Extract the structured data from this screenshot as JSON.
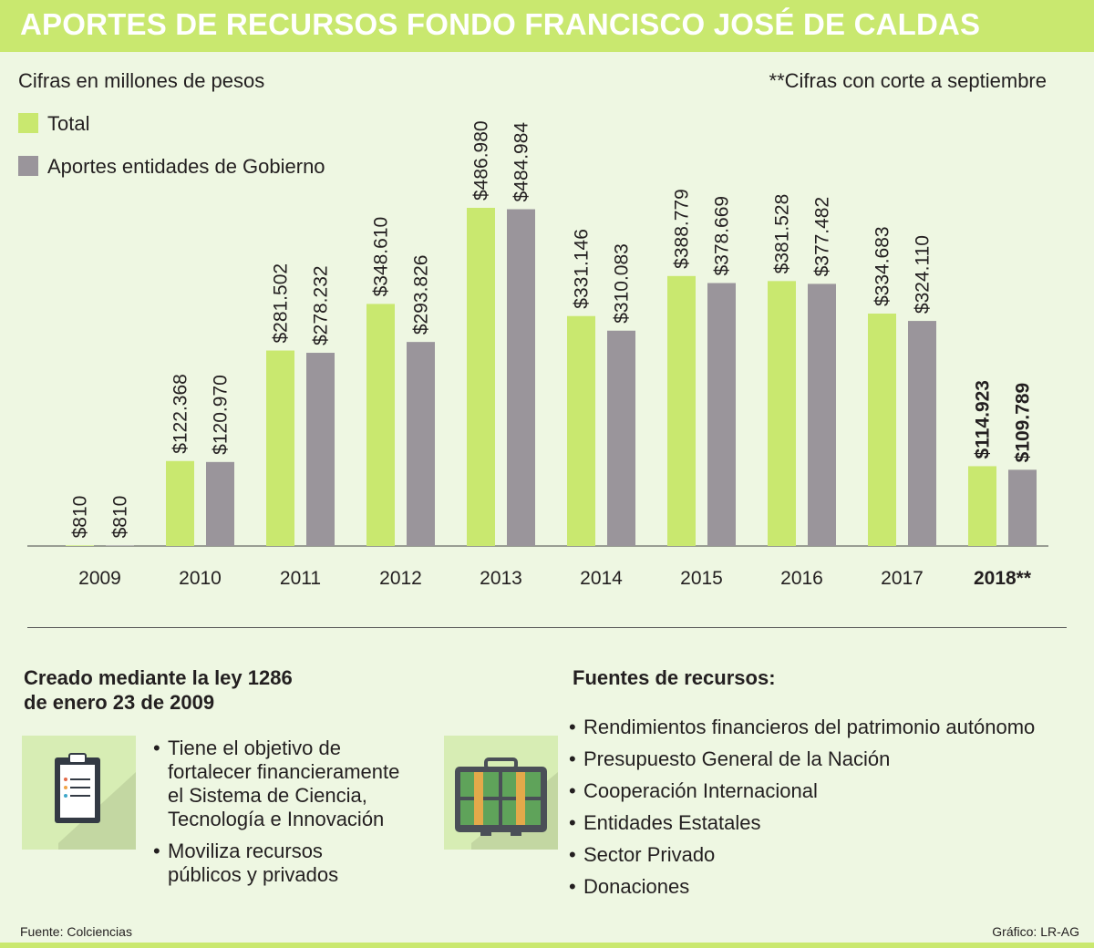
{
  "header": {
    "title": "APORTES DE RECURSOS FONDO FRANCISCO JOSÉ DE CALDAS"
  },
  "subtitle": "Cifras en millones de pesos",
  "note": "**Cifras con corte a septiembre",
  "legend": {
    "total": "Total",
    "gobierno": "Aportes entidades de Gobierno"
  },
  "colors": {
    "header": "#c9e86f",
    "total": "#c9e86f",
    "gobierno": "#9a959b",
    "background": "#eef7e2"
  },
  "chart_data": {
    "type": "bar",
    "title": "APORTES DE RECURSOS FONDO FRANCISCO JOSÉ DE CALDAS",
    "xlabel": "",
    "ylabel": "Cifras en millones de pesos",
    "categories": [
      "2009",
      "2010",
      "2011",
      "2012",
      "2013",
      "2014",
      "2015",
      "2016",
      "2017",
      "2018**"
    ],
    "series": [
      {
        "name": "Total",
        "values": [
          810,
          122368,
          281502,
          348610,
          486980,
          331146,
          388779,
          381528,
          334683,
          114923
        ],
        "labels": [
          "$810",
          "$122.368",
          "$281.502",
          "$348.610",
          "$486.980",
          "$331.146",
          "$388.779",
          "$381.528",
          "$334.683",
          "$114.923"
        ]
      },
      {
        "name": "Aportes entidades de Gobierno",
        "values": [
          810,
          120970,
          278232,
          293826,
          484984,
          310083,
          378669,
          377482,
          324110,
          109789
        ],
        "labels": [
          "$810",
          "$120.970",
          "$278.232",
          "$293.826",
          "$484.984",
          "$310.083",
          "$378.669",
          "$377.482",
          "$324.110",
          "$109.789"
        ]
      }
    ],
    "ylim": [
      0,
      520000
    ],
    "grid": false,
    "legend_position": "top-left"
  },
  "left_section": {
    "title_line1": "Creado mediante la ley 1286",
    "title_line2": "de enero 23 de 2009",
    "bullets": [
      [
        "Tiene el objetivo de",
        "fortalecer financieramente",
        "el Sistema de Ciencia,",
        "Tecnología e Innovación"
      ],
      [
        "Moviliza recursos",
        "públicos y privados"
      ]
    ]
  },
  "right_section": {
    "title": "Fuentes de recursos:",
    "bullets": [
      "Rendimientos financieros del patrimonio autónomo",
      "Presupuesto General de la Nación",
      "Cooperación Internacional",
      "Entidades Estatales",
      "Sector Privado",
      "Donaciones"
    ]
  },
  "footer": {
    "source": "Fuente: Colciencias",
    "credit": "Gráfico: LR-AG"
  }
}
